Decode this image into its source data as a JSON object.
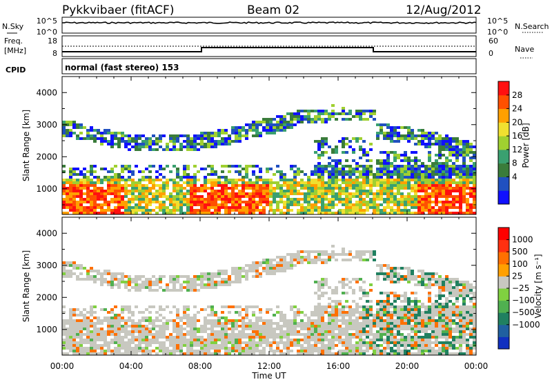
{
  "header": {
    "title": "Pykkvibaer (fitACF)",
    "beam": "Beam 02",
    "date": "12/Aug/2012"
  },
  "nsky_panel": {
    "left_label": "N.Sky",
    "right_label": "N.Search",
    "left_ticks": [
      "10^5",
      "10^0"
    ],
    "right_ticks": [
      "10^5",
      "10^0"
    ]
  },
  "freq_panel": {
    "left_label_1": "Freq.",
    "left_label_2": "[MHz]",
    "right_label": "Nave",
    "left_ticks": [
      "18",
      "8"
    ],
    "right_ticks": [
      "60",
      "0"
    ]
  },
  "cpid_panel": {
    "label": "CPID",
    "text": "normal (fast stereo) 153"
  },
  "chart_data": [
    {
      "type": "heatmap",
      "name": "power",
      "ylabel": "Slant Range [km]",
      "ylim": [
        200,
        4500
      ],
      "yticks": [
        "4000",
        "3000",
        "2000",
        "1000"
      ],
      "colorbar_label": "Power [dB]",
      "colorbar_ticks": [
        "28",
        "24",
        "20",
        "16",
        "12",
        "8",
        "4"
      ],
      "colors": [
        "#1010ff",
        "#2050c0",
        "#3a7c3a",
        "#3aa070",
        "#a0d030",
        "#f0e030",
        "#ffa000",
        "#ff5000",
        "#ff1010"
      ]
    },
    {
      "type": "heatmap",
      "name": "velocity",
      "ylabel": "Slant Range [km]",
      "ylim": [
        200,
        4500
      ],
      "yticks": [
        "4000",
        "3000",
        "2000",
        "1000"
      ],
      "colorbar_label": "Velocity [m s⁻¹]",
      "colorbar_ticks": [
        "1000",
        "500",
        "100",
        "25",
        "−25",
        "−100",
        "−500",
        "−1000"
      ],
      "colors": [
        "#1030c0",
        "#2060a0",
        "#208060",
        "#50b050",
        "#80d040",
        "#c8c8c0",
        "#ffa000",
        "#ff7000",
        "#ff3010",
        "#ff0000"
      ]
    }
  ],
  "xaxis": {
    "label": "Time UT",
    "ticks": [
      "00:00",
      "04:00",
      "08:00",
      "12:00",
      "16:00",
      "20:00",
      "00:00"
    ]
  }
}
